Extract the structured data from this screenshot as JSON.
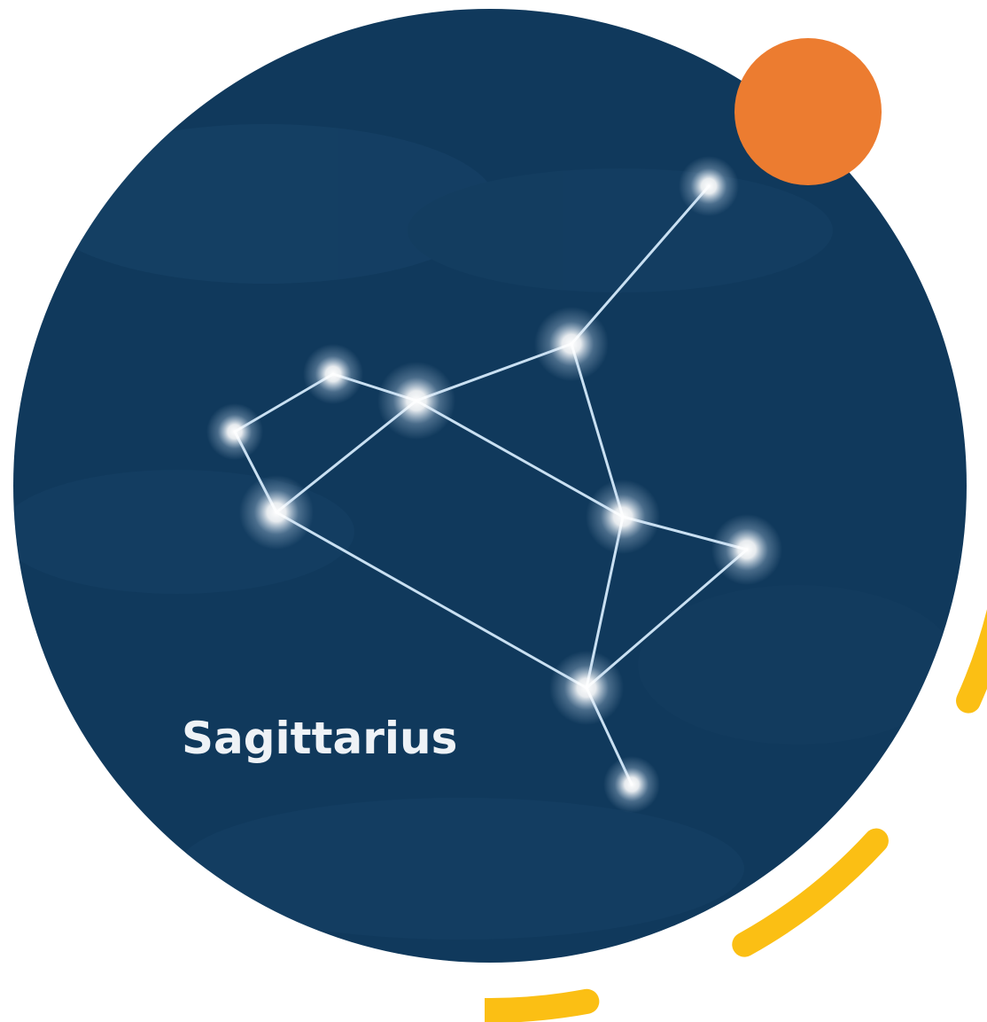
{
  "label": "Sagittarius"
}
